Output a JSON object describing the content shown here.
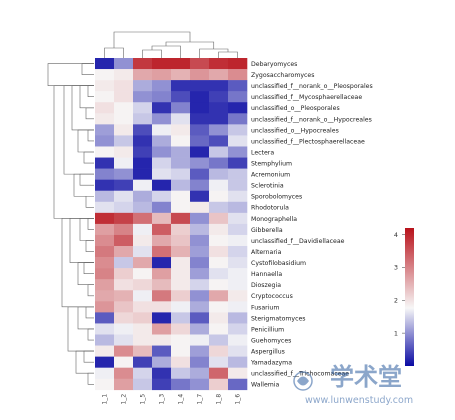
{
  "chart_data": {
    "type": "heatmap",
    "title": "",
    "columns": [
      "1_1",
      "1_2",
      "1_5",
      "1_3",
      "1_4",
      "1_7",
      "1_8",
      "1_6"
    ],
    "rows": [
      "Debaryomyces",
      "Zygosaccharomyces",
      "unclassified_f__norank_o__Pleosporales",
      "unclassified_f__Mycosphaerellaceae",
      "unclassified_o__Pleosporales",
      "unclassified_f__norank_o__Hypocreales",
      "unclassified_o__Hypocreales",
      "unclassified_f__Plectosphaerellaceae",
      "Lectera",
      "Stemphylium",
      "Acremonium",
      "Sclerotinia",
      "Sporobolomyces",
      "Rhodotorula",
      "Monographella",
      "Gibberella",
      "unclassified_f__Davidiellaceae",
      "Alternaria",
      "Cystofilobasidium",
      "Hannaella",
      "Dioszegia",
      "Cryptococcus",
      "Fusarium",
      "Sterigmatomyces",
      "Penicillium",
      "Guehomyces",
      "Aspergillus",
      "Yamadazyma",
      "unclassified_f__Trichocomaceae",
      "Wallemia"
    ],
    "values": [
      [
        0.2,
        1.0,
        3.8,
        4.0,
        4.0,
        3.6,
        3.9,
        4.0
      ],
      [
        1.8,
        1.9,
        2.6,
        2.7,
        2.5,
        2.8,
        2.6,
        2.9
      ],
      [
        1.9,
        2.0,
        1.2,
        1.0,
        0.3,
        0.3,
        0.3,
        0.6
      ],
      [
        1.8,
        2.0,
        1.0,
        0.9,
        0.5,
        0.2,
        0.4,
        0.8
      ],
      [
        2.0,
        1.8,
        1.5,
        0.3,
        0.9,
        0.2,
        0.3,
        0.2
      ],
      [
        1.9,
        1.8,
        1.4,
        1.0,
        1.6,
        0.3,
        0.3,
        0.8
      ],
      [
        1.1,
        1.9,
        0.5,
        1.7,
        1.9,
        0.6,
        1.0,
        1.4
      ],
      [
        1.0,
        1.4,
        0.3,
        1.2,
        1.8,
        0.7,
        0.5,
        1.6
      ],
      [
        1.8,
        1.9,
        0.4,
        1.0,
        1.2,
        0.2,
        1.4,
        1.0
      ],
      [
        0.3,
        1.7,
        0.2,
        1.5,
        1.2,
        1.0,
        0.8,
        0.4
      ],
      [
        0.9,
        1.0,
        0.2,
        1.6,
        1.5,
        0.6,
        1.3,
        1.4
      ],
      [
        0.3,
        0.4,
        1.7,
        0.2,
        1.3,
        0.9,
        1.7,
        1.4
      ],
      [
        1.3,
        1.6,
        1.2,
        1.5,
        1.8,
        0.3,
        1.8,
        1.6
      ],
      [
        1.6,
        1.5,
        1.3,
        0.9,
        1.8,
        1.9,
        1.4,
        1.3
      ],
      [
        3.9,
        3.7,
        3.2,
        2.4,
        3.6,
        1.0,
        2.3,
        1.6
      ],
      [
        2.7,
        3.0,
        1.7,
        3.4,
        2.2,
        1.3,
        1.9,
        1.5
      ],
      [
        2.9,
        3.4,
        1.9,
        2.6,
        2.3,
        1.0,
        1.8,
        1.7
      ],
      [
        3.1,
        2.6,
        1.6,
        3.2,
        2.5,
        1.1,
        2.0,
        1.5
      ],
      [
        2.9,
        1.4,
        2.6,
        0.2,
        1.9,
        0.9,
        1.8,
        1.6
      ],
      [
        3.0,
        2.2,
        1.8,
        2.7,
        1.9,
        1.1,
        1.6,
        1.7
      ],
      [
        2.7,
        2.0,
        2.1,
        2.4,
        1.9,
        1.5,
        1.8,
        1.7
      ],
      [
        2.6,
        2.5,
        1.7,
        3.1,
        2.2,
        1.0,
        2.6,
        1.9
      ],
      [
        2.8,
        2.3,
        2.0,
        2.0,
        1.7,
        1.2,
        1.8,
        1.7
      ],
      [
        0.6,
        2.1,
        2.2,
        0.2,
        1.4,
        0.6,
        1.9,
        1.3
      ],
      [
        1.6,
        1.7,
        1.9,
        2.7,
        2.1,
        1.2,
        1.8,
        1.5
      ],
      [
        1.3,
        1.6,
        1.9,
        1.9,
        1.8,
        1.7,
        1.4,
        1.7
      ],
      [
        1.9,
        2.9,
        2.4,
        0.6,
        1.8,
        1.1,
        2.1,
        1.6
      ],
      [
        0.2,
        1.8,
        0.4,
        1.2,
        2.0,
        0.9,
        1.6,
        1.3
      ],
      [
        1.7,
        2.9,
        1.5,
        0.3,
        1.4,
        1.2,
        3.3,
        1.9
      ],
      [
        1.8,
        2.7,
        1.4,
        0.4,
        0.8,
        1.0,
        2.2,
        0.7
      ]
    ],
    "scale": {
      "min": 0,
      "max": 4.2,
      "ticks": [
        1,
        2,
        3,
        4
      ],
      "low_color": "#0a0aa3",
      "mid_color": "#f7f7f7",
      "high_color": "#b8121b"
    },
    "legend_position": "right",
    "row_dendrogram": "left",
    "column_dendrogram": "top"
  },
  "watermark": {
    "brand_text": "学术堂",
    "url_text": "www.lunwenstudy.com",
    "color": "#2e5ea0"
  }
}
